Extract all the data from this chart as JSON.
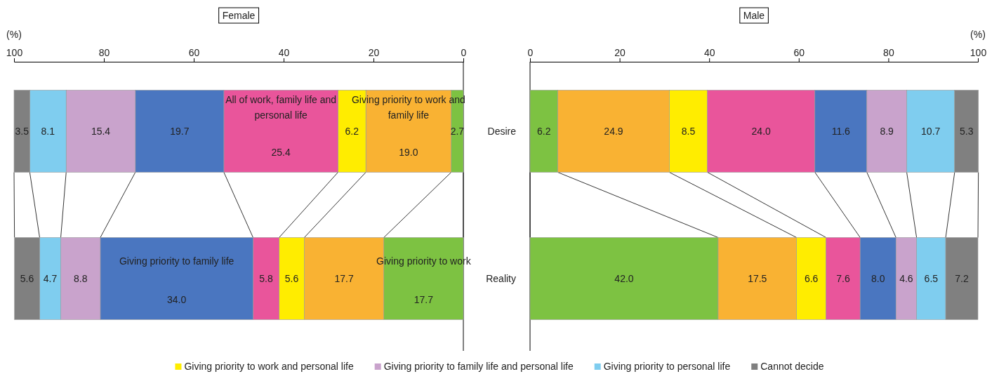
{
  "chart_data": [
    {
      "type": "bar",
      "title": "Female",
      "orientation": "horizontal",
      "stacked": true,
      "categories": [
        null,
        null
      ],
      "xlabel": "(%)",
      "xlim": [
        100,
        0
      ],
      "xticks": [
        100,
        80,
        60,
        40,
        20,
        0
      ],
      "legend": "bottom",
      "annotations": [
        "Giving priority to work",
        "Giving priority to work and family life",
        "All of work, family life and personal life",
        "Giving priority to family life"
      ],
      "series": [
        {
          "color": "#7dc242",
          "values": [
            2.7,
            17.7
          ],
          "value_labels": [
            "2.7",
            "17.7"
          ]
        },
        {
          "color": "#f9b233",
          "values": [
            19.0,
            17.7
          ],
          "value_labels": [
            "19.0",
            "17.7"
          ]
        },
        {
          "name": "Giving priority to work and personal life",
          "color": "#ffed00",
          "values": [
            6.2,
            5.6
          ],
          "value_labels": [
            "6.2",
            "5.6"
          ]
        },
        {
          "color": "#e9559b",
          "values": [
            25.4,
            5.8
          ],
          "value_labels": [
            "25.4",
            "5.8"
          ]
        },
        {
          "color": "#4a76c0",
          "values": [
            19.7,
            34.0
          ],
          "value_labels": [
            "19.7",
            "34.0"
          ]
        },
        {
          "name": "Giving priority to family life and personal life",
          "color": "#c9a3cc",
          "values": [
            15.4,
            8.8
          ],
          "value_labels": [
            "15.4",
            "8.8"
          ]
        },
        {
          "name": "Giving priority to personal life",
          "color": "#7fcdef",
          "values": [
            8.1,
            4.7
          ],
          "value_labels": [
            "8.1",
            "4.7"
          ]
        },
        {
          "name": "Cannot decide",
          "color": "#808080",
          "values": [
            3.5,
            5.6
          ],
          "value_labels": [
            "3.5",
            "5.6"
          ]
        }
      ]
    },
    {
      "type": "bar",
      "title": "Male",
      "orientation": "horizontal",
      "stacked": true,
      "categories": [
        "Desire",
        "Reality"
      ],
      "xlabel": "(%)",
      "xlim": [
        0,
        100
      ],
      "xticks": [
        0,
        20,
        40,
        60,
        80,
        100
      ],
      "series": [
        {
          "color": "#7dc242",
          "values": [
            6.2,
            42.0
          ],
          "value_labels": [
            "6.2",
            "42.0"
          ]
        },
        {
          "color": "#f9b233",
          "values": [
            24.9,
            17.5
          ],
          "value_labels": [
            "24.9",
            "17.5"
          ]
        },
        {
          "color": "#ffed00",
          "values": [
            8.5,
            6.6
          ],
          "value_labels": [
            "8.5",
            "6.6"
          ]
        },
        {
          "color": "#e9559b",
          "values": [
            24.0,
            7.6
          ],
          "value_labels": [
            "24.0",
            "7.6"
          ]
        },
        {
          "color": "#4a76c0",
          "values": [
            11.6,
            8.0
          ],
          "value_labels": [
            "11.6",
            "8.0"
          ]
        },
        {
          "color": "#c9a3cc",
          "values": [
            8.9,
            4.6
          ],
          "value_labels": [
            "8.9",
            "4.6"
          ]
        },
        {
          "color": "#7fcdef",
          "values": [
            10.7,
            6.5
          ],
          "value_labels": [
            "10.7",
            "6.5"
          ]
        },
        {
          "color": "#808080",
          "values": [
            5.3,
            7.2
          ],
          "value_labels": [
            "5.3",
            "7.2"
          ]
        }
      ]
    }
  ]
}
